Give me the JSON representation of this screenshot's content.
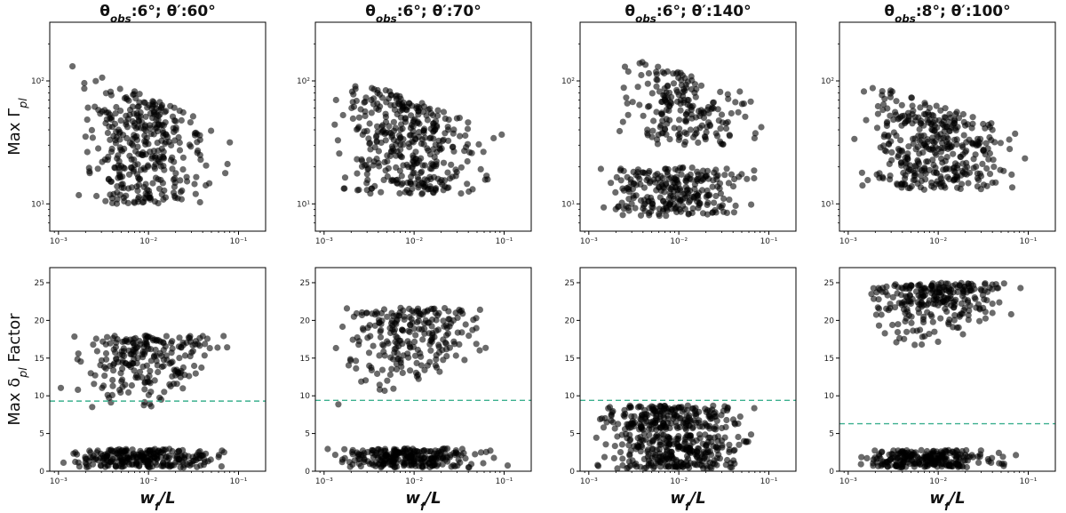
{
  "figure": {
    "ylabels": {
      "top": "Max Γ_pl",
      "bottom": "Max δ_pl Factor"
    },
    "xlabel": "w_f/L",
    "dot_color": "#000000",
    "threshold_color": "#3cb08f"
  },
  "chart_data": [
    {
      "type": "scatter",
      "row": "top",
      "title": "θ_obs:6°; θ′:60°",
      "xscale": "log",
      "yscale": "log",
      "xlim": [
        0.0008,
        0.2
      ],
      "ylim": [
        6,
        300
      ],
      "xticks": [
        "10⁻³",
        "10⁻²",
        "10⁻¹"
      ],
      "yticks": [
        "10¹",
        "10²"
      ],
      "clusters": [
        {
          "xmin": 0.001,
          "xmax": 0.13,
          "ymin": 10,
          "ymax": 150,
          "n": 360,
          "shape": "declining"
        }
      ]
    },
    {
      "type": "scatter",
      "row": "top",
      "title": "θ_obs:6°; θ′:70°",
      "xscale": "log",
      "yscale": "log",
      "xlim": [
        0.0008,
        0.2
      ],
      "ylim": [
        6,
        300
      ],
      "xticks": [
        "10⁻³",
        "10⁻²",
        "10⁻¹"
      ],
      "yticks": [
        "10¹",
        "10²"
      ],
      "clusters": [
        {
          "xmin": 0.001,
          "xmax": 0.13,
          "ymin": 12,
          "ymax": 130,
          "n": 380,
          "shape": "declining"
        }
      ]
    },
    {
      "type": "scatter",
      "row": "top",
      "title": "θ_obs:6°; θ′:140°",
      "xscale": "log",
      "yscale": "log",
      "xlim": [
        0.0008,
        0.2
      ],
      "ylim": [
        6,
        300
      ],
      "xticks": [
        "10⁻³",
        "10⁻²",
        "10⁻¹"
      ],
      "yticks": [
        "10¹",
        "10²"
      ],
      "clusters": [
        {
          "xmin": 0.001,
          "xmax": 0.13,
          "ymin": 8,
          "ymax": 20,
          "n": 260,
          "shape": "flat"
        },
        {
          "xmin": 0.0015,
          "xmax": 0.12,
          "ymin": 30,
          "ymax": 180,
          "n": 200,
          "shape": "declining"
        }
      ]
    },
    {
      "type": "scatter",
      "row": "top",
      "title": "θ_obs:8°; θ′:100°",
      "xscale": "log",
      "yscale": "log",
      "xlim": [
        0.0008,
        0.2
      ],
      "ylim": [
        6,
        300
      ],
      "xticks": [
        "10⁻³",
        "10⁻²",
        "10⁻¹"
      ],
      "yticks": [
        "10¹",
        "10²"
      ],
      "clusters": [
        {
          "xmin": 0.001,
          "xmax": 0.13,
          "ymin": 13,
          "ymax": 110,
          "n": 380,
          "shape": "declining"
        }
      ]
    },
    {
      "type": "scatter",
      "row": "bottom",
      "title": "",
      "xscale": "log",
      "yscale": "linear",
      "xlim": [
        0.0008,
        0.2
      ],
      "ylim": [
        0,
        27
      ],
      "threshold": 9.3,
      "xticks": [
        "10⁻³",
        "10⁻²",
        "10⁻¹"
      ],
      "yticks": [
        0,
        5,
        10,
        15,
        20,
        25
      ],
      "clusters": [
        {
          "xmin": 0.001,
          "xmax": 0.13,
          "ymin": 0.5,
          "ymax": 3,
          "n": 260,
          "shape": "flat"
        },
        {
          "xmin": 0.001,
          "xmax": 0.12,
          "ymin": 4.5,
          "ymax": 18,
          "n": 230,
          "shape": "rising"
        }
      ]
    },
    {
      "type": "scatter",
      "row": "bottom",
      "title": "",
      "xscale": "log",
      "yscale": "linear",
      "xlim": [
        0.0008,
        0.2
      ],
      "ylim": [
        0,
        27
      ],
      "threshold": 9.4,
      "xticks": [
        "10⁻³",
        "10⁻²",
        "10⁻¹"
      ],
      "yticks": [
        0,
        5,
        10,
        15,
        20,
        25
      ],
      "clusters": [
        {
          "xmin": 0.001,
          "xmax": 0.12,
          "ymin": 0.5,
          "ymax": 3,
          "n": 260,
          "shape": "flat"
        },
        {
          "xmin": 0.001,
          "xmax": 0.1,
          "ymin": 7,
          "ymax": 21.7,
          "n": 240,
          "shape": "rising"
        }
      ]
    },
    {
      "type": "scatter",
      "row": "bottom",
      "title": "",
      "xscale": "log",
      "yscale": "linear",
      "xlim": [
        0.0008,
        0.2
      ],
      "ylim": [
        0,
        27
      ],
      "threshold": 9.4,
      "xticks": [
        "10⁻³",
        "10⁻²",
        "10⁻¹"
      ],
      "yticks": [
        0,
        5,
        10,
        15,
        20,
        25
      ],
      "clusters": [
        {
          "xmin": 0.001,
          "xmax": 0.12,
          "ymin": 0.3,
          "ymax": 5,
          "n": 280,
          "shape": "flat"
        },
        {
          "xmin": 0.001,
          "xmax": 0.1,
          "ymin": 5.5,
          "ymax": 8.7,
          "n": 220,
          "shape": "flat"
        }
      ]
    },
    {
      "type": "scatter",
      "row": "bottom",
      "title": "",
      "xscale": "log",
      "yscale": "linear",
      "xlim": [
        0.0008,
        0.2
      ],
      "ylim": [
        0,
        27
      ],
      "threshold": 6.3,
      "xticks": [
        "10⁻³",
        "10⁻²",
        "10⁻¹"
      ],
      "yticks": [
        0,
        5,
        10,
        15,
        20,
        25
      ],
      "clusters": [
        {
          "xmin": 0.001,
          "xmax": 0.12,
          "ymin": 0.5,
          "ymax": 2.8,
          "n": 250,
          "shape": "flat"
        },
        {
          "xmin": 0.001,
          "xmax": 0.12,
          "ymin": 14,
          "ymax": 25,
          "n": 260,
          "shape": "rising"
        }
      ]
    }
  ]
}
